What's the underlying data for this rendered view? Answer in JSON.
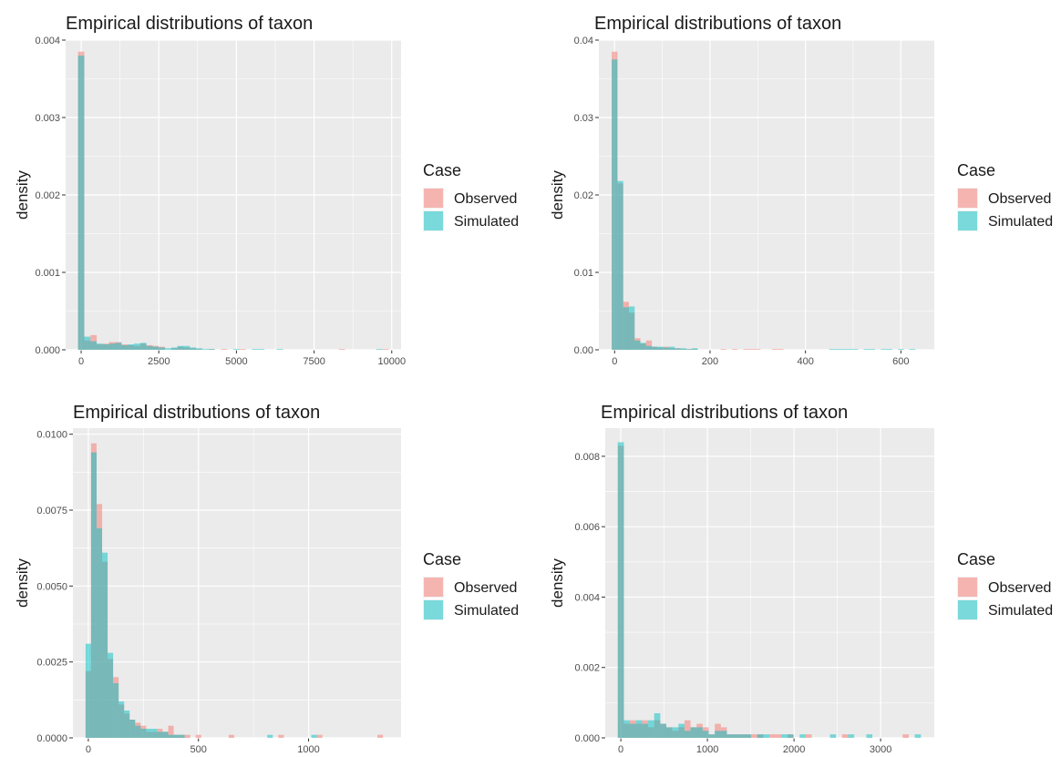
{
  "colors": {
    "observed": "#F8766D",
    "simulated": "#00BFC4",
    "panel": "#EBEBEB",
    "grid": "#FFFFFF"
  },
  "legend": {
    "title": "Case",
    "items": [
      "Observed",
      "Simulated"
    ]
  },
  "chart_data": [
    {
      "type": "bar",
      "title": "Empirical distributions of taxon",
      "xlabel": "",
      "ylabel": "density",
      "xlim": [
        -500,
        10300
      ],
      "ylim": [
        0,
        0.004
      ],
      "xticks": [
        0,
        2500,
        5000,
        7500,
        10000
      ],
      "xtick_labels": [
        "0",
        "2500",
        "5000",
        "7500",
        "10000"
      ],
      "yticks": [
        0,
        0.001,
        0.002,
        0.003,
        0.004
      ],
      "ytick_labels": [
        "0.000",
        "0.001",
        "0.002",
        "0.003",
        "0.004"
      ],
      "x": [
        0,
        200,
        400,
        600,
        800,
        1000,
        1200,
        1400,
        1600,
        1800,
        2000,
        2200,
        2400,
        2600,
        2800,
        3000,
        3200,
        3400,
        3600,
        3800,
        4000,
        4200,
        4400,
        4600,
        4800,
        5000,
        5200,
        5400,
        5600,
        5800,
        6000,
        6200,
        6400,
        6600,
        6800,
        7000,
        7200,
        7400,
        7600,
        7800,
        8000,
        8200,
        8400,
        8600,
        8800,
        9000,
        9200,
        9400,
        9600,
        9800
      ],
      "series": [
        {
          "name": "Observed",
          "values": [
            0.00385,
            0.00012,
            0.00019,
            7e-05,
            8e-05,
            0.0001,
            0.0001,
            7e-05,
            6e-05,
            5e-05,
            8e-05,
            6e-05,
            5e-05,
            4e-05,
            0,
            2e-05,
            4e-05,
            3e-05,
            2e-05,
            1e-05,
            0,
            1e-05,
            0,
            1e-05,
            0,
            0,
            1e-05,
            0,
            0,
            0,
            0,
            0,
            0,
            0,
            0,
            0,
            0,
            0,
            0,
            0,
            0,
            0,
            1e-05,
            0,
            0,
            0,
            0,
            0,
            0,
            1e-05
          ]
        },
        {
          "name": "Simulated",
          "values": [
            0.0038,
            0.00017,
            0.00011,
            8e-05,
            7e-05,
            8e-05,
            9e-05,
            6e-05,
            7e-05,
            8e-05,
            9e-05,
            5e-05,
            4e-05,
            3e-05,
            2e-05,
            3e-05,
            5e-05,
            5e-05,
            3e-05,
            2e-05,
            1e-05,
            1e-05,
            0,
            0,
            0,
            1e-05,
            0,
            0,
            1e-05,
            1e-05,
            0,
            0,
            1e-05,
            0,
            0,
            0,
            0,
            0,
            0,
            0,
            0,
            0,
            0,
            0,
            0,
            0,
            0,
            0,
            1e-05,
            0
          ]
        }
      ]
    },
    {
      "type": "bar",
      "title": "Empirical distributions of taxon",
      "xlabel": "",
      "ylabel": "density",
      "xlim": [
        -33,
        670
      ],
      "ylim": [
        0,
        0.04
      ],
      "xticks": [
        0,
        200,
        400,
        600
      ],
      "xtick_labels": [
        "0",
        "200",
        "400",
        "600"
      ],
      "yticks": [
        0,
        0.01,
        0.02,
        0.03,
        0.04
      ],
      "ytick_labels": [
        "0.00",
        "0.01",
        "0.02",
        "0.03",
        "0.04"
      ],
      "x": [
        0,
        12,
        24,
        36,
        48,
        60,
        72,
        84,
        96,
        108,
        120,
        132,
        144,
        156,
        168,
        180,
        192,
        204,
        216,
        228,
        240,
        252,
        264,
        276,
        288,
        300,
        312,
        324,
        336,
        348,
        360,
        372,
        384,
        396,
        408,
        420,
        432,
        444,
        456,
        468,
        480,
        492,
        504,
        516,
        528,
        540,
        552,
        564,
        576,
        588,
        600,
        612,
        624
      ],
      "series": [
        {
          "name": "Observed",
          "values": [
            0.0385,
            0.0215,
            0.0062,
            0.0048,
            0.0015,
            0.0008,
            0.0012,
            0.0004,
            0.0003,
            0.0004,
            0.0002,
            0.0002,
            0.0001,
            0.0001,
            0.0001,
            0,
            0,
            0,
            0,
            0.0001,
            0,
            0.0001,
            0,
            0.0001,
            0.0001,
            0.0001,
            0,
            0,
            0.0001,
            0.0001,
            0,
            0,
            0,
            0,
            0,
            0,
            0,
            0,
            0,
            0,
            0,
            0,
            0,
            0,
            0,
            0,
            0,
            0,
            0,
            0,
            0,
            0,
            0
          ]
        },
        {
          "name": "Simulated",
          "values": [
            0.0375,
            0.0218,
            0.0055,
            0.0056,
            0.0012,
            0.0009,
            0.0005,
            0.0004,
            0.0004,
            0.0003,
            0.0004,
            0.0002,
            0.0002,
            0.0001,
            0.0002,
            0,
            0,
            0,
            0,
            0,
            0,
            0,
            0,
            0,
            0,
            0,
            0,
            0,
            0,
            0,
            0,
            0,
            0,
            0,
            0,
            0,
            0,
            0,
            0.0001,
            0.0001,
            0.0001,
            0.0001,
            0.0001,
            0,
            0.0001,
            0.0001,
            0,
            0.0001,
            0.0001,
            0,
            0.0001,
            0,
            0.0001
          ]
        }
      ]
    },
    {
      "type": "bar",
      "title": "Empirical distributions of taxon",
      "xlabel": "",
      "ylabel": "density",
      "xlim": [
        -70,
        1420
      ],
      "ylim": [
        0,
        0.0102
      ],
      "xticks": [
        0,
        500,
        1000
      ],
      "xtick_labels": [
        "0",
        "500",
        "1000"
      ],
      "yticks": [
        0,
        0.0025,
        0.005,
        0.0075,
        0.01
      ],
      "ytick_labels": [
        "0.0000",
        "0.0025",
        "0.0050",
        "0.0075",
        "0.0100"
      ],
      "x": [
        0,
        25,
        50,
        75,
        100,
        125,
        150,
        175,
        200,
        225,
        250,
        275,
        300,
        325,
        350,
        375,
        400,
        425,
        450,
        475,
        500,
        525,
        550,
        575,
        600,
        625,
        650,
        675,
        700,
        725,
        750,
        775,
        800,
        825,
        850,
        875,
        900,
        925,
        950,
        975,
        1000,
        1025,
        1050,
        1075,
        1100,
        1125,
        1150,
        1175,
        1200,
        1225,
        1250,
        1275,
        1300,
        1325
      ],
      "series": [
        {
          "name": "Observed",
          "values": [
            0.0022,
            0.0097,
            0.0077,
            0.0058,
            0.0026,
            0.002,
            0.0011,
            0.0008,
            0.0006,
            0.0005,
            0.0004,
            0.0002,
            0.0002,
            0.0003,
            0.0002,
            0.0004,
            0.0001,
            0.0001,
            0.0001,
            0,
            0.0001,
            0,
            0,
            0,
            0,
            0,
            0.0001,
            0,
            0,
            0,
            0,
            0,
            0,
            0,
            0,
            0.0001,
            0,
            0,
            0,
            0,
            0,
            0,
            0.0001,
            0,
            0,
            0,
            0,
            0,
            0,
            0,
            0,
            0,
            0,
            0.0001
          ]
        },
        {
          "name": "Simulated",
          "values": [
            0.0031,
            0.0094,
            0.0069,
            0.0061,
            0.0028,
            0.0018,
            0.0012,
            0.0009,
            0.0006,
            0.0004,
            0.0003,
            0.0003,
            0.0003,
            0.0002,
            0.0002,
            0.0001,
            0.0001,
            0.0001,
            0,
            0,
            0,
            0,
            0,
            0,
            0,
            0,
            0,
            0,
            0,
            0,
            0,
            0,
            0,
            0.0001,
            0,
            0,
            0,
            0,
            0,
            0,
            0,
            0.0001,
            0,
            0,
            0,
            0,
            0,
            0,
            0,
            0,
            0,
            0,
            0,
            0
          ]
        }
      ]
    },
    {
      "type": "bar",
      "title": "Empirical distributions of taxon",
      "xlabel": "",
      "ylabel": "density",
      "xlim": [
        -180,
        3620
      ],
      "ylim": [
        0,
        0.0088
      ],
      "xticks": [
        0,
        1000,
        2000,
        3000
      ],
      "xtick_labels": [
        "0",
        "1000",
        "2000",
        "3000"
      ],
      "yticks": [
        0,
        0.002,
        0.004,
        0.006,
        0.008
      ],
      "ytick_labels": [
        "0.000",
        "0.002",
        "0.004",
        "0.006",
        "0.008"
      ],
      "x": [
        0,
        70,
        140,
        210,
        280,
        350,
        420,
        490,
        560,
        630,
        700,
        770,
        840,
        910,
        980,
        1050,
        1120,
        1190,
        1260,
        1330,
        1400,
        1470,
        1540,
        1610,
        1680,
        1750,
        1820,
        1890,
        1960,
        2030,
        2100,
        2170,
        2240,
        2310,
        2380,
        2450,
        2520,
        2590,
        2660,
        2730,
        2800,
        2870,
        2940,
        3010,
        3080,
        3150,
        3220,
        3290,
        3360,
        3430
      ],
      "series": [
        {
          "name": "Observed",
          "values": [
            0.0083,
            0.0004,
            0.0005,
            0.0004,
            0.0005,
            0.0003,
            0.0005,
            0.0004,
            0.0003,
            0.0002,
            0.0003,
            0.0005,
            0.0003,
            0.0004,
            0.0003,
            0.0001,
            0.0004,
            0.0003,
            0.0001,
            0.0001,
            0.0001,
            0.0001,
            0.0001,
            0.0001,
            0,
            0.0001,
            0.0001,
            0,
            0.0001,
            0,
            0,
            0.0001,
            0,
            0,
            0,
            0,
            0,
            0.0001,
            0,
            0,
            0,
            0,
            0,
            0,
            0,
            0,
            0,
            0.0001,
            0,
            0
          ]
        },
        {
          "name": "Simulated",
          "values": [
            0.0084,
            0.0005,
            0.0004,
            0.0005,
            0.0004,
            0.0005,
            0.0007,
            0.0004,
            0.0003,
            0.0003,
            0.0004,
            0.0002,
            0.0003,
            0.0003,
            0.0002,
            0.0001,
            0.0002,
            0.0002,
            0.0001,
            0.0001,
            0.0001,
            0.0001,
            0,
            0.0001,
            0.0001,
            0,
            0,
            0.0001,
            0.0001,
            0,
            0.0001,
            0,
            0,
            0,
            0,
            0.0001,
            0,
            0,
            0.0001,
            0,
            0,
            0.0001,
            0,
            0,
            0,
            0,
            0,
            0,
            0,
            0.0001
          ]
        }
      ]
    }
  ]
}
